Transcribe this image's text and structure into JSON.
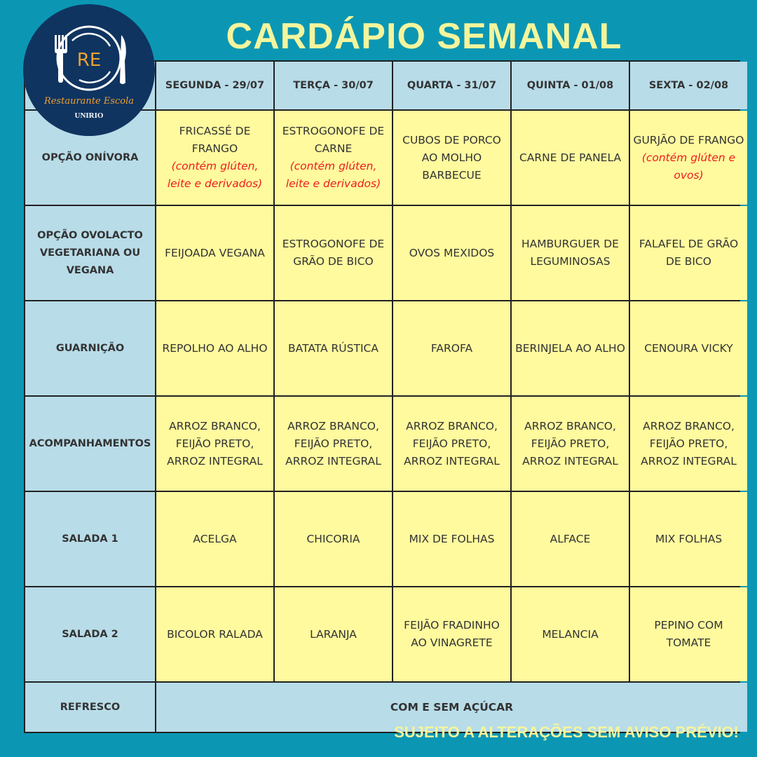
{
  "title": "CARDÁPIO SEMANAL",
  "logo": {
    "initials": "RE",
    "name": "Restaurante Escola",
    "org": "UNIRIO"
  },
  "days": [
    "SEGUNDA - 29/07",
    "TERÇA - 30/07",
    "QUARTA - 31/07",
    "QUINTA - 01/08",
    "SEXTA - 02/08"
  ],
  "rows": [
    {
      "label": "OPÇÃO ONÍVORA",
      "cells": [
        {
          "text": "FRICASSÉ DE FRANGO",
          "note": "(contém glúten, leite e derivados)"
        },
        {
          "text": "ESTROGONOFE DE CARNE",
          "note": "(contém glúten, leite e derivados)"
        },
        {
          "text": "CUBOS DE PORCO AO MOLHO BARBECUE"
        },
        {
          "text": "CARNE DE PANELA"
        },
        {
          "text": "GURJÃO DE FRANGO",
          "note": "(contém glúten e ovos)"
        }
      ]
    },
    {
      "label": "OPÇÃO OVOLACTO VEGETARIANA OU VEGANA",
      "cells": [
        {
          "text": "FEIJOADA VEGANA"
        },
        {
          "text": "ESTROGONOFE DE GRÃO DE BICO"
        },
        {
          "text": "OVOS MEXIDOS"
        },
        {
          "text": "HAMBURGUER DE LEGUMINOSAS"
        },
        {
          "text": "FALAFEL DE GRÃO DE BICO"
        }
      ]
    },
    {
      "label": "GUARNIÇÃO",
      "cells": [
        {
          "text": "REPOLHO AO ALHO"
        },
        {
          "text": "BATATA RÚSTICA"
        },
        {
          "text": "FAROFA"
        },
        {
          "text": "BERINJELA AO ALHO"
        },
        {
          "text": "CENOURA VICKY"
        }
      ]
    },
    {
      "label": "ACOMPANHAMENTOS",
      "cells": [
        {
          "text": "ARROZ BRANCO, FEIJÃO PRETO, ARROZ INTEGRAL"
        },
        {
          "text": "ARROZ BRANCO, FEIJÃO PRETO, ARROZ INTEGRAL"
        },
        {
          "text": "ARROZ BRANCO, FEIJÃO PRETO, ARROZ INTEGRAL"
        },
        {
          "text": "ARROZ BRANCO, FEIJÃO PRETO, ARROZ INTEGRAL"
        },
        {
          "text": "ARROZ BRANCO, FEIJÃO PRETO, ARROZ INTEGRAL"
        }
      ]
    },
    {
      "label": "SALADA 1",
      "cells": [
        {
          "text": "ACELGA"
        },
        {
          "text": "CHICORIA"
        },
        {
          "text": "MIX DE FOLHAS"
        },
        {
          "text": "ALFACE"
        },
        {
          "text": "MIX FOLHAS"
        }
      ]
    },
    {
      "label": "SALADA 2",
      "cells": [
        {
          "text": "BICOLOR RALADA"
        },
        {
          "text": "LARANJA"
        },
        {
          "text": "FEIJÃO FRADINHO AO VINAGRETE"
        },
        {
          "text": "MELANCIA"
        },
        {
          "text": "PEPINO COM TOMATE"
        }
      ]
    }
  ],
  "refresco": {
    "label": "REFRESCO",
    "value": "COM E SEM AÇÚCAR"
  },
  "footer": "SUJEITO A ALTERAÇÕES SEM AVISO PRÉVIO!",
  "colors": {
    "background": "#0b97b4",
    "header": "#b8dce8",
    "cell": "#fffa9e",
    "title": "#f4f59c",
    "allergen": "#ee1c1c",
    "logo": "#0f3460"
  }
}
